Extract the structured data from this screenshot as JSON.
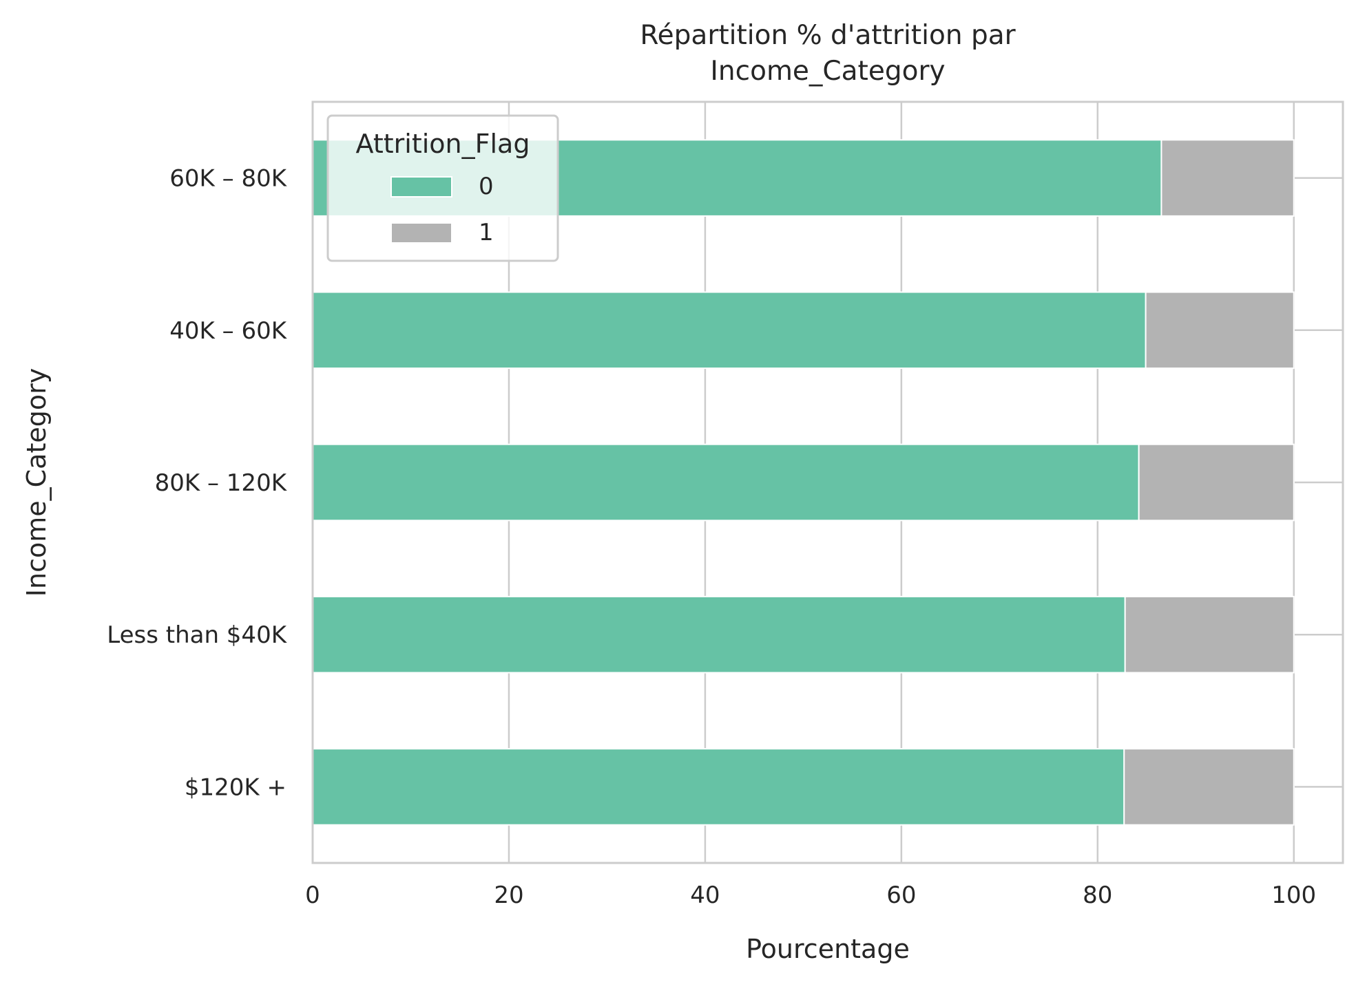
{
  "chart_data": {
    "type": "bar",
    "orientation": "horizontal",
    "stacked": true,
    "title": [
      "Répartition % d'attrition par",
      "Income_Category"
    ],
    "xlabel": "Pourcentage",
    "ylabel": "Income_Category",
    "xlim": [
      0,
      105
    ],
    "xticks": [
      0,
      20,
      40,
      60,
      80,
      100
    ],
    "grid": true,
    "categories": [
      "$60K - $80K",
      "$40K - $60K",
      "$80K - $120K",
      "Less than $40K",
      "$120K +"
    ],
    "category_labels": [
      "60K – 80K",
      "40K – 60K",
      "80K – 120K",
      "Less than $40K",
      "$120K +"
    ],
    "series": [
      {
        "name": "0",
        "color": "#66c2a5",
        "values": [
          86.5,
          84.9,
          84.2,
          82.8,
          82.7
        ]
      },
      {
        "name": "1",
        "color": "#b3b3b3",
        "values": [
          13.5,
          15.1,
          15.8,
          17.2,
          17.3
        ]
      }
    ],
    "legend": {
      "title": "Attrition_Flag",
      "placement": "upper-left"
    }
  }
}
